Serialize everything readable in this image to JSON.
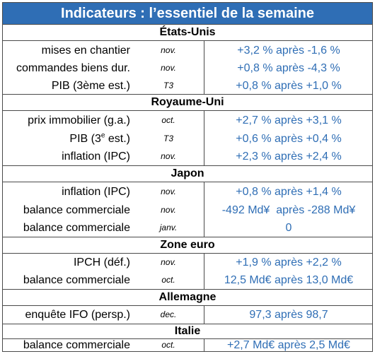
{
  "title": "Indicateurs : l’essentiel de la semaine",
  "sections": [
    {
      "name": "États-Unis",
      "rows": [
        {
          "label": "mises en chantier",
          "period": "nov.",
          "value": "+3,2 % après -1,6 %"
        },
        {
          "label": "commandes biens dur.",
          "period": "nov.",
          "value": "+0,8 % après -4,3 %"
        },
        {
          "label": "PIB (3ème est.)",
          "period": "T3",
          "value": "+0,8 % après +1,0 %"
        }
      ]
    },
    {
      "name": "Royaume-Uni",
      "rows": [
        {
          "label": "prix immobilier (g.a.)",
          "period": "oct.",
          "value": "+2,7 % après +3,1 %"
        },
        {
          "label_pre": "PIB (3",
          "label_sup": "e",
          "label_post": " est.)",
          "period": "T3",
          "value": "+0,6 % après +0,4 %"
        },
        {
          "label": "inflation (IPC)",
          "period": "nov.",
          "value": "+2,3 % après +2,4 %"
        }
      ]
    },
    {
      "name": "Japon",
      "rows": [
        {
          "label": "inflation (IPC)",
          "period": "nov.",
          "value": "+0,8 % après +1,4 %"
        },
        {
          "label": "balance commerciale",
          "period": "nov.",
          "value": "-492 Md¥  après -288 Md¥"
        },
        {
          "label": "balance commerciale",
          "period": "janv.",
          "value": "0"
        }
      ]
    },
    {
      "name": "Zone euro",
      "rows": [
        {
          "label": "IPCH (déf.)",
          "period": "nov.",
          "value": "+1,9 % après +2,2 %"
        },
        {
          "label": "balance commerciale",
          "period": "oct.",
          "value": "12,5 Md€ après 13,0 Md€"
        }
      ]
    },
    {
      "name": "Allemagne",
      "rows": [
        {
          "label": "enquête IFO (persp.)",
          "period": "dec.",
          "value": "97,3 après 98,7"
        }
      ]
    },
    {
      "name": "Italie",
      "rows": [
        {
          "label": "balance commerciale",
          "period": "oct.",
          "value": "+2,7 Md€ après 2,5 Md€"
        }
      ]
    }
  ]
}
